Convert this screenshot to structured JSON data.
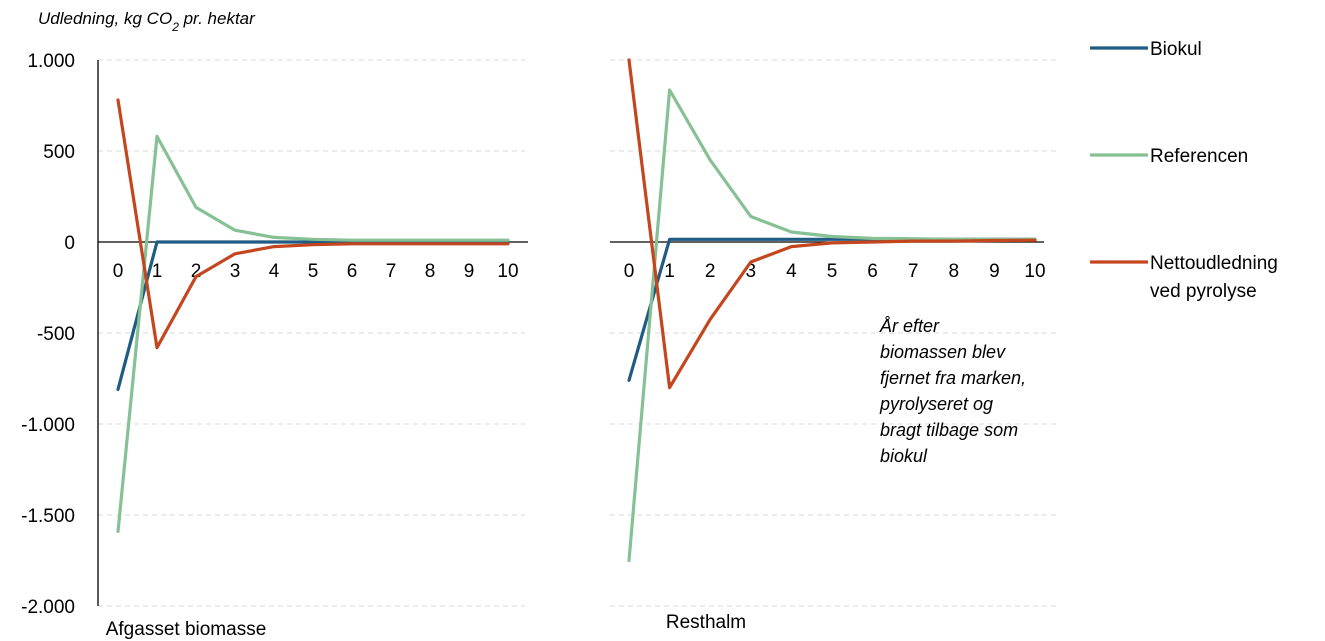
{
  "chart_data": {
    "type": "line",
    "ylabel_prefix": "Udledning, kg CO",
    "ylabel_sub": "2",
    "ylabel_suffix": " pr. hektar",
    "ylim": [
      -2000,
      1000
    ],
    "yticks": [
      1000,
      500,
      0,
      -500,
      -1000,
      -1500,
      -2000
    ],
    "ytick_labels": [
      "1.000",
      "500",
      "0",
      "-500",
      "-1.000",
      "-1.500",
      "-2.000"
    ],
    "grid": "horizontal dashed",
    "x": [
      0,
      1,
      2,
      3,
      4,
      5,
      6,
      7,
      8,
      9,
      10
    ],
    "xtick_labels": [
      "0",
      "1",
      "2",
      "3",
      "4",
      "5",
      "6",
      "7",
      "8",
      "9",
      "10"
    ],
    "annotation_lines": [
      "År efter",
      "biomassen blev",
      "fjernet fra marken,",
      "pyrolyseret og",
      "bragt tilbage som",
      "biokul"
    ],
    "legend": {
      "placement": "right",
      "items": [
        {
          "name": "Biokul",
          "color": "#1f5b82"
        },
        {
          "name": "Referencen",
          "color": "#86c094"
        },
        {
          "name_lines": [
            "Nettoudledning",
            "ved pyrolyse"
          ],
          "color": "#c4461e"
        }
      ]
    },
    "panels": [
      {
        "label": "Afgasset biomasse",
        "series": [
          {
            "name": "Biokul",
            "color": "#1f5b82",
            "values": [
              -810,
              0,
              0,
              0,
              0,
              0,
              0,
              0,
              0,
              0,
              0
            ]
          },
          {
            "name": "Referencen",
            "color": "#86c094",
            "values": [
              -1590,
              580,
              190,
              65,
              25,
              15,
              10,
              10,
              10,
              10,
              10
            ]
          },
          {
            "name": "Nettoudledning ved pyrolyse",
            "color": "#c4461e",
            "values": [
              780,
              -580,
              -190,
              -65,
              -25,
              -15,
              -10,
              -10,
              -10,
              -10,
              -10
            ]
          }
        ]
      },
      {
        "label": "Resthalm",
        "series": [
          {
            "name": "Biokul",
            "color": "#1f5b82",
            "values": [
              -760,
              15,
              15,
              15,
              15,
              15,
              15,
              15,
              15,
              15,
              15
            ]
          },
          {
            "name": "Referencen",
            "color": "#86c094",
            "values": [
              -1750,
              835,
              450,
              140,
              55,
              30,
              20,
              18,
              15,
              15,
              15
            ]
          },
          {
            "name": "Nettoudledning ved pyrolyse",
            "color": "#c4461e",
            "values": [
              1000,
              -800,
              -425,
              -110,
              -25,
              -5,
              0,
              5,
              5,
              8,
              10
            ]
          }
        ]
      }
    ]
  }
}
